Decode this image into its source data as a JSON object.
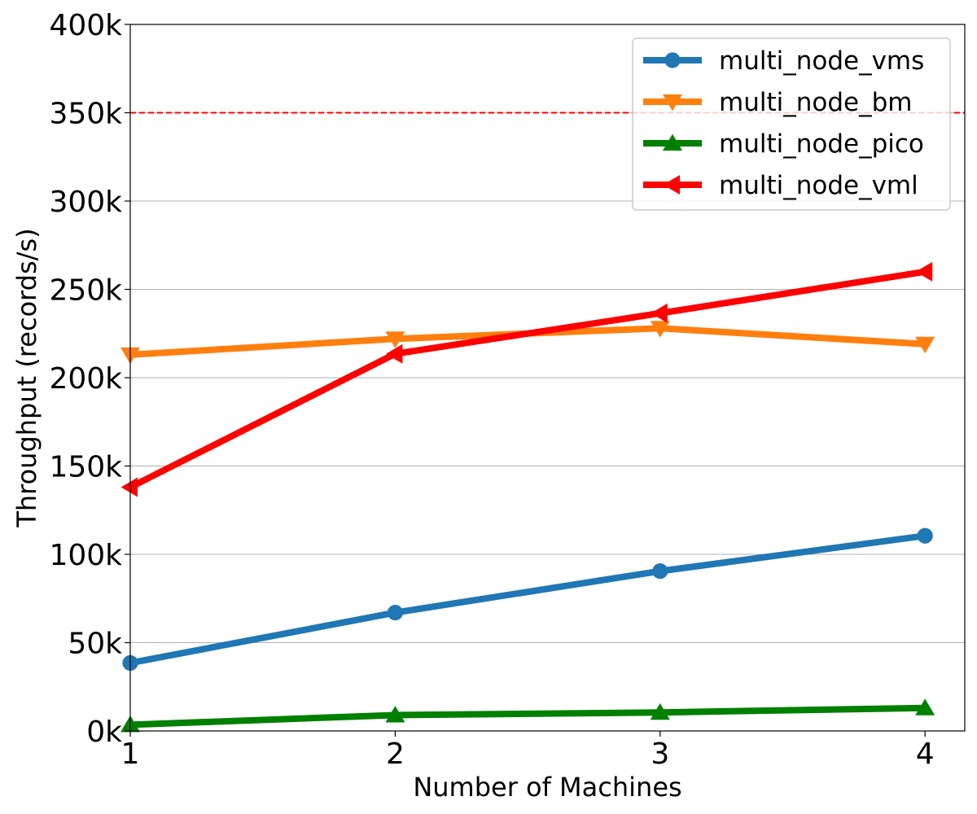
{
  "chart_data": {
    "type": "line",
    "title": "",
    "xlabel": "Number of Machines",
    "ylabel": "Throughput (records/s)",
    "x": [
      1,
      2,
      3,
      4
    ],
    "xticks": [
      "1",
      "2",
      "3",
      "4"
    ],
    "xlim": [
      1,
      4.15
    ],
    "ylim": [
      0,
      400000
    ],
    "yticks": [
      "0k",
      "50k",
      "100k",
      "150k",
      "200k",
      "250k",
      "300k",
      "350k",
      "400k"
    ],
    "ytick_values": [
      0,
      50000,
      100000,
      150000,
      200000,
      250000,
      300000,
      350000,
      400000
    ],
    "grid": "horizontal",
    "legend_position": "top-right",
    "reference_line": {
      "value": 350000,
      "color": "#ff0000",
      "style": "dashed"
    },
    "series": [
      {
        "name": "multi_node_vms",
        "values": [
          38500,
          67000,
          90500,
          110500
        ],
        "color": "#1f77b4",
        "marker": "circle"
      },
      {
        "name": "multi_node_bm",
        "values": [
          213000,
          222000,
          228000,
          219000
        ],
        "color": "#ff7f0e",
        "marker": "triangle-down"
      },
      {
        "name": "multi_node_pico",
        "values": [
          3500,
          9000,
          10500,
          13000
        ],
        "color": "#008000",
        "marker": "triangle-up"
      },
      {
        "name": "multi_node_vml",
        "values": [
          138000,
          213500,
          236500,
          260000
        ],
        "color": "#ff0000",
        "marker": "triangle-left"
      }
    ]
  }
}
